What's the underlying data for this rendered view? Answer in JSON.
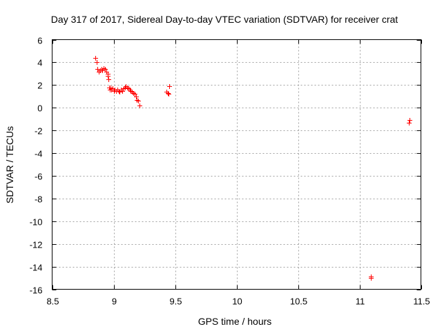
{
  "chart_data": {
    "type": "scatter",
    "title": "Day 317 of 2017, Sidereal Day-to-day VTEC variation (SDTVAR) for receiver crat",
    "xlabel": "GPS time / hours",
    "ylabel": "SDTVAR / TECUs",
    "xlim": [
      8.5,
      11.5
    ],
    "ylim": [
      -16,
      6
    ],
    "x_ticks": [
      8.5,
      9,
      9.5,
      10,
      10.5,
      11,
      11.5
    ],
    "x_tick_labels": [
      "8.5",
      "9",
      "9.5",
      "10",
      "10.5",
      "11",
      "11.5"
    ],
    "y_ticks": [
      -16,
      -14,
      -12,
      -10,
      -8,
      -6,
      -4,
      -2,
      0,
      2,
      4,
      6
    ],
    "y_tick_labels": [
      "-16",
      "-14",
      "-12",
      "-10",
      "-8",
      "-6",
      "-4",
      "-2",
      "0",
      "2",
      "4",
      "6"
    ],
    "grid": true,
    "marker": "plus",
    "color": "#ff0000",
    "series": [
      {
        "x": [
          8.85,
          8.86,
          8.87,
          8.88,
          8.89,
          8.9,
          8.91,
          8.92,
          8.93,
          8.94,
          8.95,
          8.955,
          8.96,
          8.965,
          8.97,
          8.975,
          8.98,
          8.99,
          9.0,
          9.01,
          9.02,
          9.03,
          9.04,
          9.05,
          9.06,
          9.07,
          9.08,
          9.09,
          9.1,
          9.11,
          9.12,
          9.13,
          9.14,
          9.15,
          9.16,
          9.17,
          9.18,
          9.19,
          9.2,
          9.21,
          9.43,
          9.44,
          9.445,
          9.45,
          11.09,
          11.095,
          11.4,
          11.405
        ],
        "y": [
          4.4,
          4.0,
          3.4,
          3.2,
          3.3,
          3.4,
          3.3,
          3.5,
          3.4,
          3.2,
          3.0,
          2.8,
          2.5,
          1.8,
          1.6,
          1.8,
          1.6,
          1.7,
          1.5,
          1.6,
          1.5,
          1.6,
          1.5,
          1.4,
          1.6,
          1.5,
          1.7,
          1.8,
          1.9,
          1.8,
          1.7,
          1.6,
          1.5,
          1.4,
          1.3,
          1.2,
          1.0,
          0.7,
          0.6,
          0.2,
          1.4,
          1.3,
          1.2,
          1.9,
          -14.9,
          -15.0,
          -1.3,
          -1.1
        ]
      }
    ]
  }
}
